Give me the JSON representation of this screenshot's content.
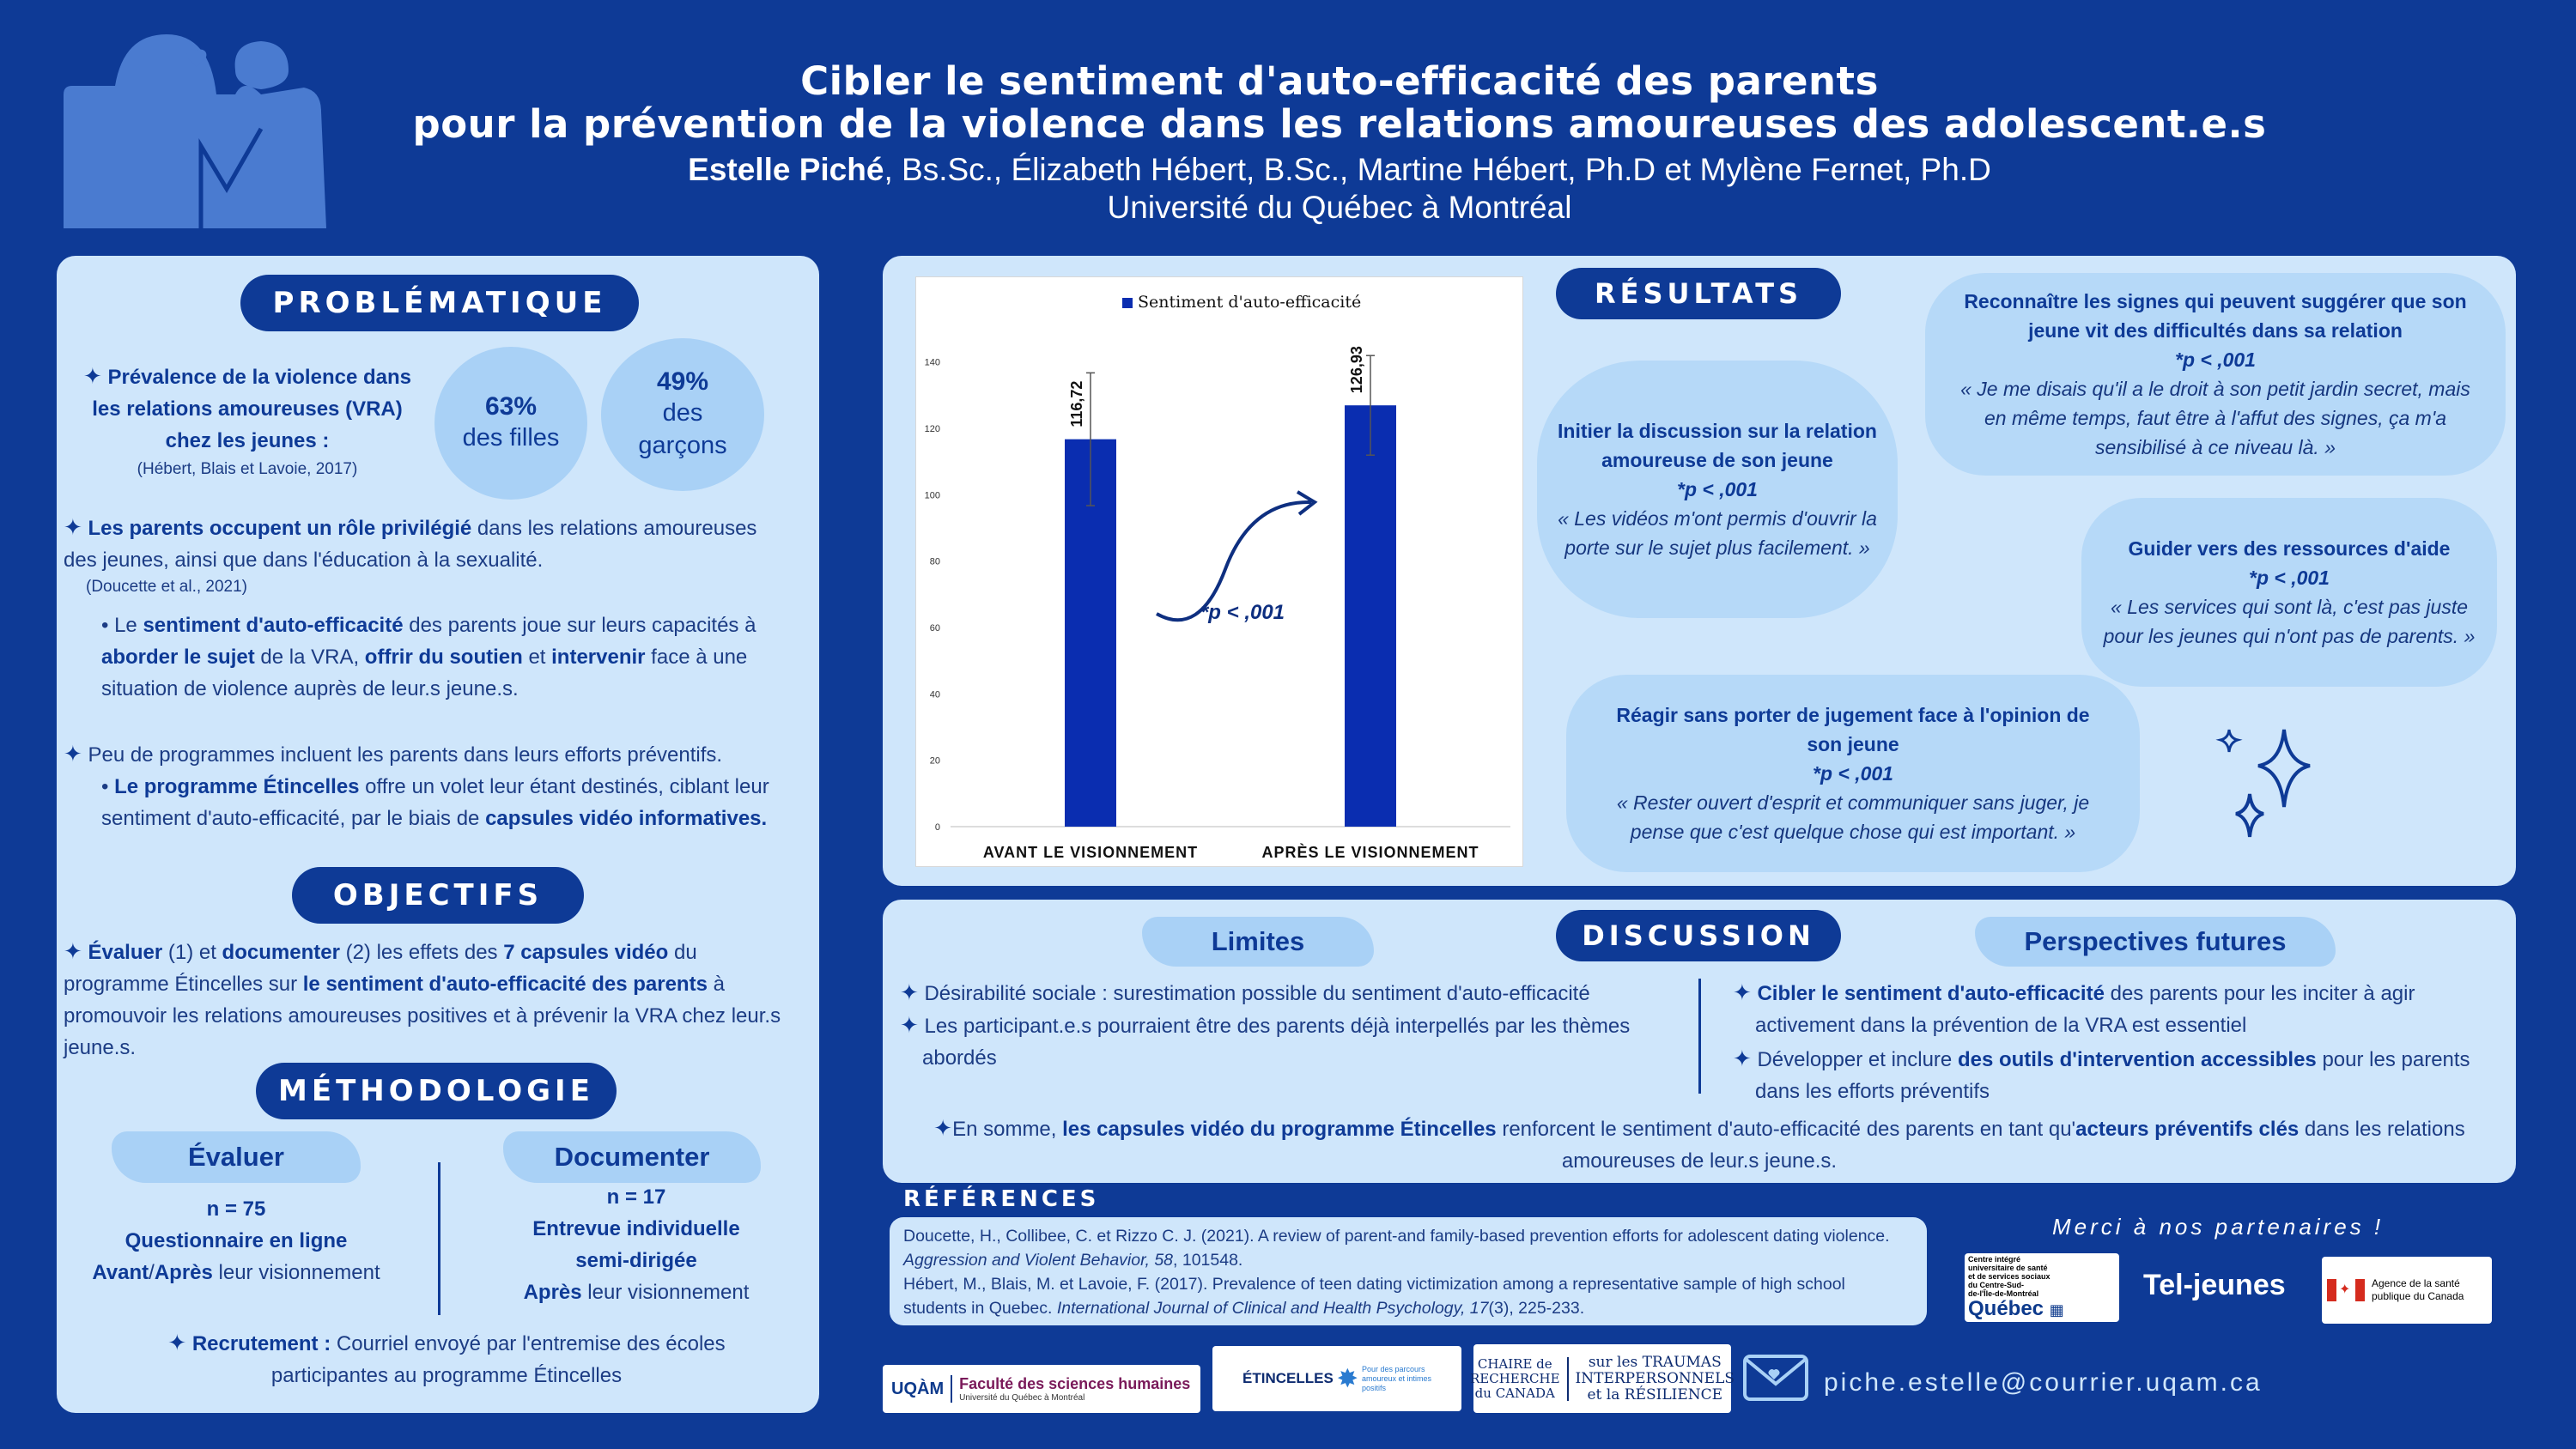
{
  "header": {
    "title_line1": "Cibler le sentiment d'auto-efficacité des parents",
    "title_line2": "pour la prévention de la violence dans les relations amoureuses des adolescent.e.s",
    "lead_author": "Estelle Piché",
    "other_authors": ", Bs.Sc., Élizabeth Hébert, B.Sc., Martine Hébert, Ph.D et Mylène Fernet, Ph.D",
    "affiliation": "Université du Québec à Montréal"
  },
  "problematique": {
    "heading": "PROBLÉMATIQUE",
    "prevalence_pre": "Prévalence de la violence dans les relations amoureuses (",
    "prevalence_vra": "VRA",
    "prevalence_post": ") chez les jeunes :",
    "prevalence_ref": "(Hébert, Blais et Lavoie, 2017)",
    "stat_girls_pct": "63%",
    "stat_girls_label": "des filles",
    "stat_boys_pct": "49%",
    "stat_boys_label_1": "des",
    "stat_boys_label_2": "garçons",
    "parents_bold": "Les parents occupent un rôle privilégié",
    "parents_rest": " dans les relations amoureuses des jeunes, ainsi que dans l'éducation à la sexualité.",
    "parents_ref": "(Doucette et al., 2021)",
    "sub1_a": "Le ",
    "sub1_b": "sentiment d'auto-efficacité",
    "sub1_c": " des parents joue sur leurs capacités à ",
    "sub1_d": "aborder le sujet",
    "sub1_e": " de la VRA, ",
    "sub1_f": "offrir du soutien",
    "sub1_g": " et ",
    "sub1_h": "intervenir",
    "sub1_i": " face à une situation de violence auprès de leur.s jeune.s.",
    "programs": "Peu de programmes incluent les parents dans leurs efforts préventifs.",
    "sub2_a": "Le programme Étincelles",
    "sub2_b": " offre un volet leur étant destinés, ciblant leur sentiment d'auto-efficacité, par le biais de ",
    "sub2_c": "capsules vidéo informatives."
  },
  "objectifs": {
    "heading": "OBJECTIFS",
    "t1": "Évaluer",
    "t2": " (1) et ",
    "t3": "documenter",
    "t4": " (2) les effets des ",
    "t5": "7 capsules vidéo",
    "t6": " du programme Étincelles sur ",
    "t7": "le sentiment d'auto-efficacité des parents",
    "t8": " à promouvoir les relations amoureuses positives et à prévenir la VRA chez leur.s jeune.s."
  },
  "methodologie": {
    "heading": "MÉTHODOLOGIE",
    "evaluer_title": "Évaluer",
    "evaluer_n": "n = 75",
    "evaluer_l1": "Questionnaire en ligne",
    "evaluer_l2a": "Avant",
    "evaluer_l2b": "/",
    "evaluer_l2c": "Après",
    "evaluer_l2d": " leur visionnement",
    "documenter_title": "Documenter",
    "documenter_n": "n = 17",
    "documenter_l1": "Entrevue individuelle",
    "documenter_l2": "semi-dirigée",
    "documenter_l3a": "Après",
    "documenter_l3b": " leur visionnement",
    "recrutement_bold": "Recrutement :",
    "recrutement_rest": " Courriel envoyé par l'entremise des écoles participantes au programme Étincelles"
  },
  "resultats": {
    "heading": "RÉSULTATS",
    "b1_title": "Initier la discussion sur la relation amoureuse de son jeune",
    "b1_p": "*p < ,001",
    "b1_quote": "« Les vidéos m'ont permis d'ouvrir la porte sur le sujet plus facilement. »",
    "b2_title": "Reconnaître les signes qui peuvent suggérer que son jeune vit des difficultés dans sa relation",
    "b2_p": "*p < ,001",
    "b2_quote": "« Je me disais qu'il a le droit à son petit jardin secret, mais en même temps, faut être à l'affut des signes, ça m'a sensibilisé à ce niveau là. »",
    "b3_title": "Guider vers des ressources d'aide",
    "b3_p": "*p < ,001",
    "b3_quote": "« Les services qui sont là, c'est pas juste pour les jeunes qui n'ont pas de parents. »",
    "b4_title": "Réagir sans porter de jugement face à l'opinion de son jeune",
    "b4_p": "*p < ,001",
    "b4_quote": "« Rester ouvert d'esprit et communiquer sans juger, je pense que c'est quelque chose qui est important. »"
  },
  "chart_data": {
    "type": "bar",
    "categories": [
      "AVANT LE VISIONNEMENT",
      "APRÈS LE VISIONNEMENT"
    ],
    "series": [
      {
        "name": "Sentiment d'auto-efficacité",
        "values": [
          116.72,
          126.93
        ]
      }
    ],
    "value_labels": [
      "116,72",
      "126,93"
    ],
    "error": [
      20,
      15
    ],
    "yticks": [
      0,
      20,
      40,
      60,
      80,
      100,
      120,
      140
    ],
    "ylim": [
      0,
      150
    ],
    "annotation": "*p < ,001",
    "bar_color": "#0a2db0",
    "legend_position": "top"
  },
  "discussion": {
    "heading": "DISCUSSION",
    "limites_title": "Limites",
    "lim1": "Désirabilité sociale : surestimation possible du sentiment d'auto-efficacité",
    "lim2": "Les participant.e.s pourraient être des parents déjà interpellés par les thèmes abordés",
    "persp_title": "Perspectives futures",
    "p1_bold": "Cibler le sentiment d'auto-efficacité",
    "p1_rest": " des parents pour les inciter à agir activement dans la prévention de la VRA est essentiel",
    "p2_a": "Développer et inclure ",
    "p2_b": "des outils d'intervention accessibles",
    "p2_c": " pour les parents dans les efforts préventifs",
    "concl_a": "En somme, ",
    "concl_b": "les capsules vidéo du programme Étincelles",
    "concl_c": " renforcent le sentiment d'auto-efficacité des parents en tant qu'",
    "concl_d": "acteurs préventifs clés",
    "concl_e": " dans les relations amoureuses de leur.s jeune.s."
  },
  "references": {
    "heading": "RÉFÉRENCES",
    "r1_a": "Doucette, H., Collibee, C. et Rizzo C. J. (2021). A review of parent-and family-based prevention efforts for adolescent dating violence. ",
    "r1_b": "Aggression and Violent Behavior, 58",
    "r1_c": ", 101548.",
    "r2_a": "Hébert, M., Blais, M. et Lavoie, F. (2017). Prevalence of teen dating victimization among a representative sample of high school students in Quebec. ",
    "r2_b": "International Journal of Clinical and Health Psychology, 17",
    "r2_c": "(3), 225-233."
  },
  "partners": {
    "thanks": "Merci à nos partenaires !",
    "quebec_l1": "Centre intégré",
    "quebec_l2": "universitaire de santé",
    "quebec_l3": "et de services sociaux",
    "quebec_l4": "du Centre-Sud-",
    "quebec_l5": "de-l'Île-de-Montréal",
    "quebec_name": "Québec",
    "teljeunes": "Tel-jeunes",
    "aspc_l1": "Agence de la santé",
    "aspc_l2": "publique du Canada",
    "uqam_logo": "UQÀM",
    "uqam_fac": "Faculté des sciences humaines",
    "uqam_sub": "Université du Québec à Montréal",
    "etincelles": "ÉTINCELLES",
    "etincelles_tag1": "Pour des parcours",
    "etincelles_tag2": "amoureux et intimes",
    "etincelles_tag3": "positifs",
    "chaire_a1": "CHAIRE de",
    "chaire_a2": "RECHERCHE",
    "chaire_a3": "du CANADA",
    "chaire_b1": "sur les TRAUMAS",
    "chaire_b2": "INTERPERSONNELS",
    "chaire_b3": "et la RÉSILIENCE"
  },
  "contact": {
    "email": "piche.estelle@courrier.uqam.ca"
  },
  "colors": {
    "background": "#0e3a96",
    "panel": "#cfe6fb",
    "accent": "#a9d1f6"
  }
}
